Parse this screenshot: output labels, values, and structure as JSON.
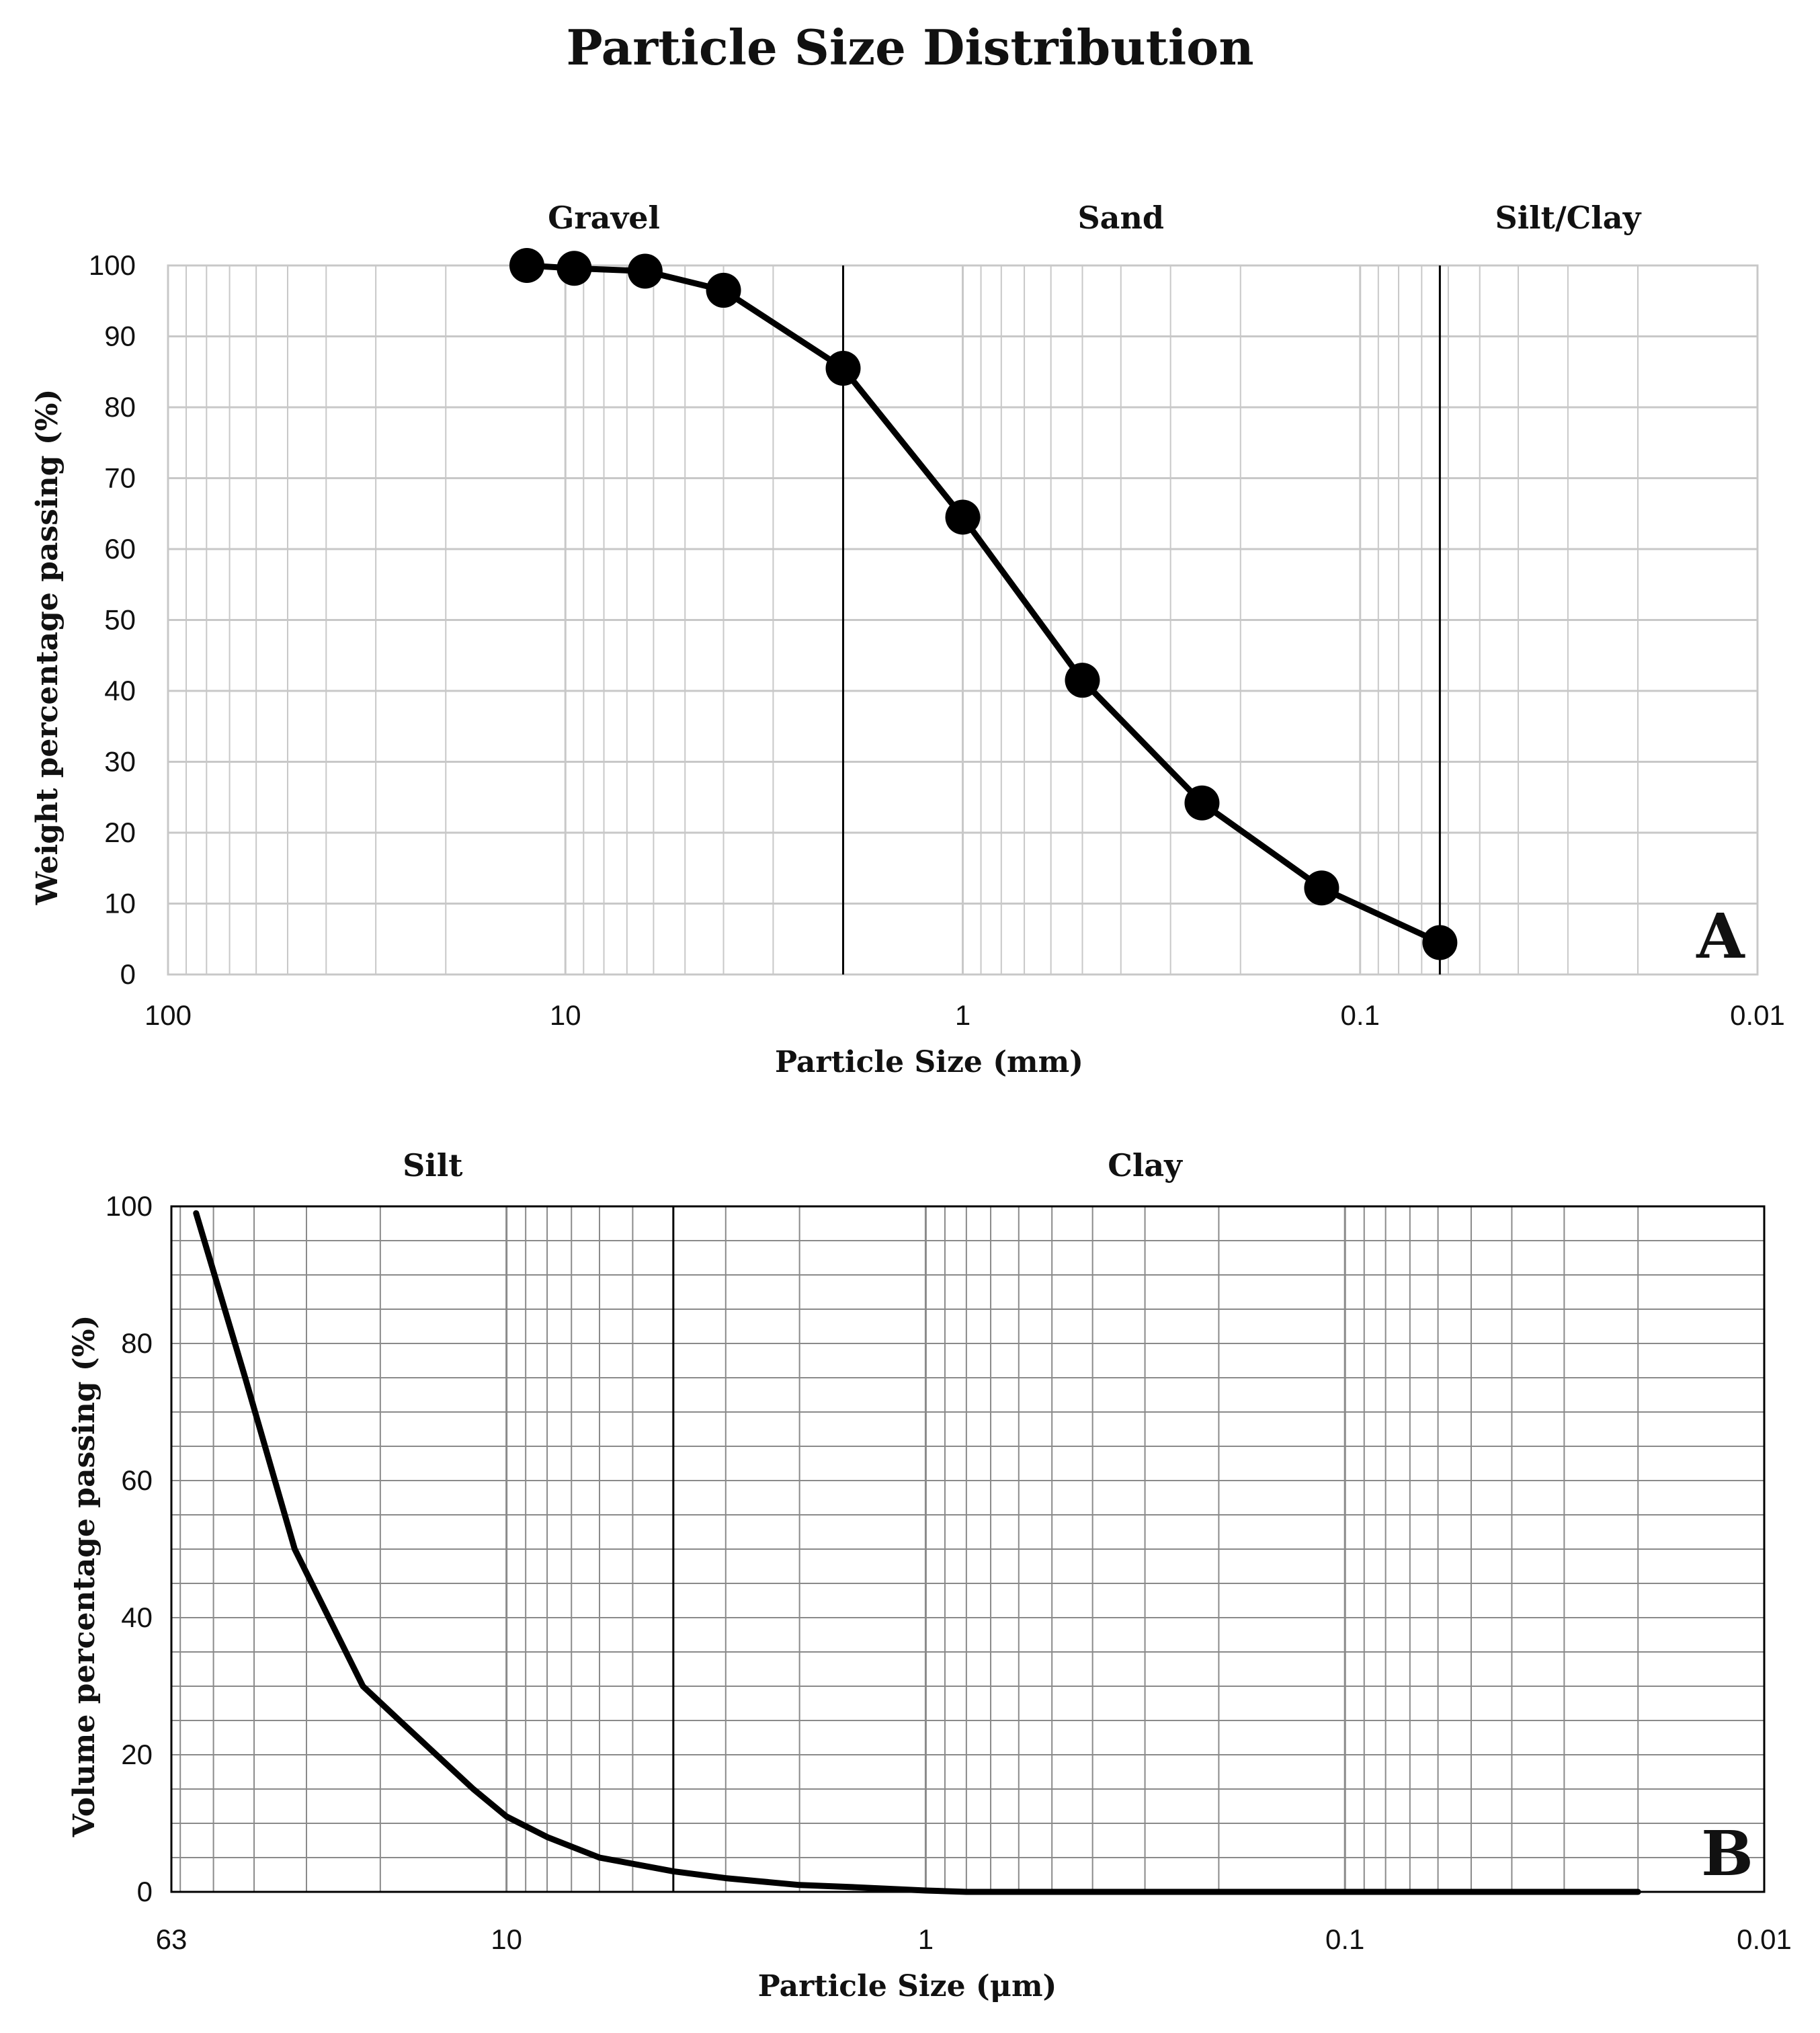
{
  "title": "Particle Size Distribution",
  "colors": {
    "line": "#000000",
    "grid": "#c8c8c8",
    "grid_b": "#8a8a8a"
  },
  "chart_data": [
    {
      "id": "A",
      "type": "line",
      "x_scale": "log",
      "x_reversed": true,
      "xlim": [
        100,
        0.01
      ],
      "ylim": [
        0,
        100
      ],
      "xlabel": "Particle Size (mm)",
      "ylabel": "Weight percentage passing (%)",
      "x_ticks": [
        100,
        10,
        1,
        0.1,
        0.01
      ],
      "x_tick_labels": [
        "100",
        "10",
        "1",
        "0.1",
        "0.01"
      ],
      "y_ticks": [
        0,
        10,
        20,
        30,
        40,
        50,
        60,
        70,
        80,
        90,
        100
      ],
      "panel_label": "A",
      "zones": [
        {
          "label": "Gravel",
          "x_label_at": 8
        },
        {
          "label": "Sand",
          "x_label_at": 0.4
        },
        {
          "label": "Silt/Clay",
          "x_label_at": 0.03
        }
      ],
      "boundaries": [
        2,
        0.063
      ],
      "markers": true,
      "series": [
        {
          "name": "Weight percentage passing",
          "x": [
            12.5,
            9.5,
            6.3,
            4,
            2,
            1,
            0.5,
            0.25,
            0.125,
            0.063
          ],
          "y": [
            100,
            99.6,
            99.2,
            96.5,
            85.5,
            64.5,
            41.5,
            24.2,
            12.2,
            4.5
          ]
        }
      ]
    },
    {
      "id": "B",
      "type": "line",
      "x_scale": "log",
      "x_reversed": true,
      "xlim": [
        63,
        0.01
      ],
      "ylim": [
        0,
        100
      ],
      "xlabel": "Particle Size (μm)",
      "ylabel": "Volume percentage passing (%)",
      "x_ticks": [
        63,
        10,
        1,
        0.1,
        0.01
      ],
      "x_tick_labels": [
        "63",
        "10",
        "1",
        "0.1",
        "0.01"
      ],
      "y_ticks": [
        0,
        20,
        40,
        60,
        80,
        100
      ],
      "panel_label": "B",
      "zones": [
        {
          "label": "Silt",
          "x_label_at": 15
        },
        {
          "label": "Clay",
          "x_label_at": 0.3
        }
      ],
      "boundaries": [
        4
      ],
      "markers": false,
      "series": [
        {
          "name": "Volume percentage passing",
          "x": [
            55,
            42,
            32,
            22,
            18,
            12,
            10,
            8,
            6,
            4,
            3,
            2,
            1.5,
            1,
            0.8,
            0.5,
            0.2,
            0.1,
            0.05,
            0.02
          ],
          "y": [
            99,
            75,
            50,
            30,
            25,
            15,
            11,
            8,
            5,
            3,
            2,
            1,
            0.7,
            0.2,
            0,
            0,
            0,
            0,
            0,
            0
          ]
        }
      ]
    }
  ]
}
